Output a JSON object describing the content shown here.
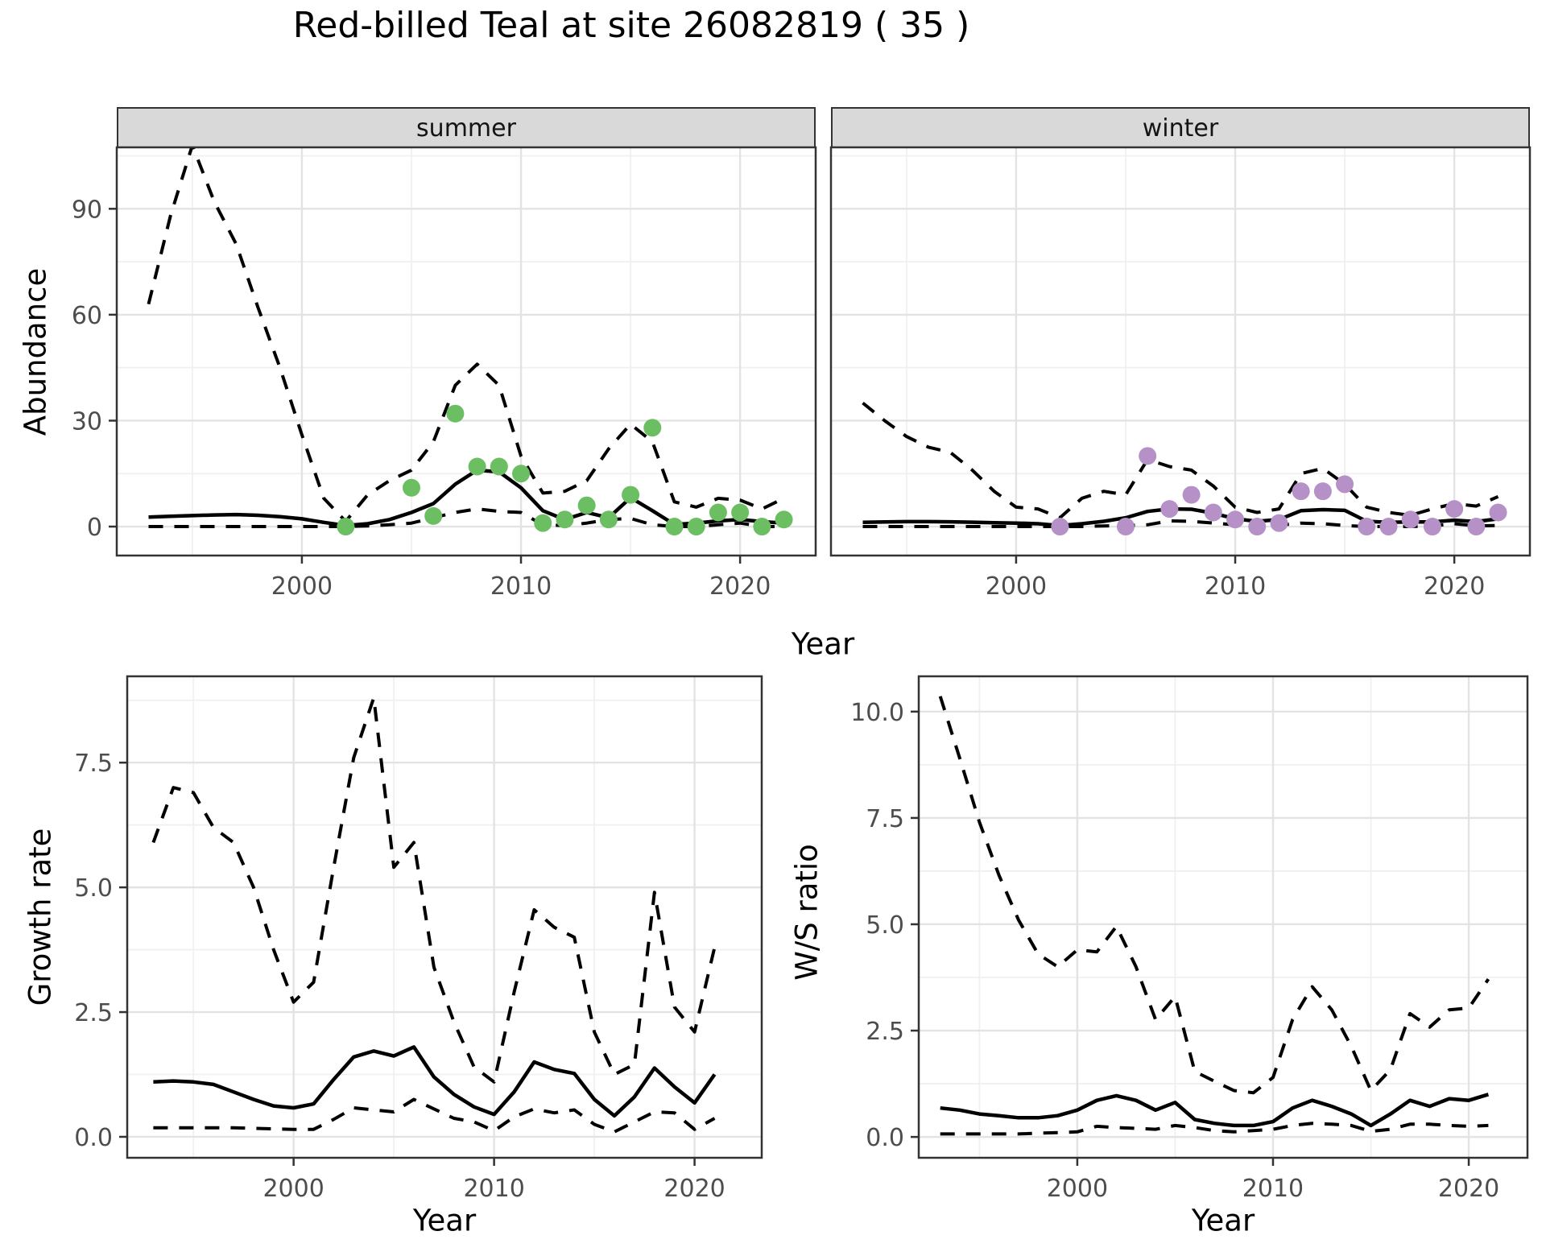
{
  "title": "Red-billed Teal at site 26082819 ( 35 )",
  "facets": [
    "summer",
    "winter"
  ],
  "top_row": {
    "ylabel": "Abundance",
    "xlabel": "Year"
  },
  "bottom_left": {
    "ylabel": "Growth rate",
    "xlabel": "Year"
  },
  "bottom_right": {
    "ylabel": "W/S ratio",
    "xlabel": "Year"
  },
  "colors": {
    "summer_points": "#6cbe63",
    "winter_points": "#b691c7",
    "line": "#000000",
    "strip_bg": "#d9d9d9",
    "panel_border": "#333333",
    "grid_major": "#e3e3e3",
    "grid_minor": "#f0f0f0",
    "tick_text": "#4d4d4d"
  },
  "chart_data": [
    {
      "type": "line",
      "facet": "summer",
      "title": "Abundance - summer",
      "xlabel": "Year",
      "ylabel": "Abundance",
      "grid": true,
      "legend": "none",
      "xticks": [
        2000,
        2010,
        2020
      ],
      "yticks": [
        0,
        30,
        60,
        90
      ],
      "ytick_labels": [
        "0",
        "30",
        "60",
        "90"
      ],
      "ylim": [
        -8,
        108
      ],
      "line_color": "#000000",
      "point_color": "#6cbe63",
      "x": [
        1993,
        1994,
        1995,
        1996,
        1997,
        1998,
        1999,
        2000,
        2001,
        2002,
        2003,
        2004,
        2005,
        2006,
        2007,
        2008,
        2009,
        2010,
        2011,
        2012,
        2013,
        2014,
        2015,
        2016,
        2017,
        2018,
        2019,
        2020,
        2021,
        2022
      ],
      "series": [
        {
          "name": "mean",
          "style": "solid",
          "values": [
            2.7,
            2.9,
            3.1,
            3.3,
            3.4,
            3.2,
            2.8,
            2.2,
            1.2,
            0.3,
            0.8,
            2.0,
            4.0,
            6.5,
            12,
            16,
            15.5,
            11,
            4.5,
            2.0,
            4.0,
            2.5,
            8.2,
            4.5,
            0.6,
            1.0,
            1.6,
            2.0,
            1.4,
            1.0
          ]
        },
        {
          "name": "upper_ci",
          "style": "dashed",
          "values": [
            63,
            88,
            108,
            92,
            80,
            62,
            45,
            26,
            8,
            1.5,
            9,
            13,
            16,
            24,
            40,
            46,
            40,
            20,
            9.5,
            10,
            13,
            22,
            29,
            24,
            7,
            5.5,
            8,
            7.5,
            5,
            8
          ]
        },
        {
          "name": "lower_ci",
          "style": "dashed",
          "values": [
            0,
            0,
            0,
            0,
            0,
            0,
            0,
            0,
            0,
            0,
            0.2,
            0.5,
            1,
            2.5,
            4,
            5,
            4.3,
            4,
            0.5,
            0.3,
            1,
            2,
            2.3,
            0.5,
            0,
            0,
            0.5,
            1,
            0,
            0
          ]
        }
      ],
      "points": {
        "x": [
          2002,
          2005,
          2006,
          2007,
          2008,
          2009,
          2010,
          2011,
          2012,
          2013,
          2014,
          2015,
          2016,
          2017,
          2018,
          2019,
          2020,
          2021,
          2022
        ],
        "y": [
          0,
          11,
          3,
          32,
          17,
          17,
          15,
          1,
          2,
          6,
          2,
          9,
          28,
          0,
          0,
          4,
          4,
          0,
          2
        ]
      }
    },
    {
      "type": "line",
      "facet": "winter",
      "title": "Abundance - winter",
      "xlabel": "Year",
      "ylabel": "Abundance",
      "grid": true,
      "legend": "none",
      "xticks": [
        2000,
        2010,
        2020
      ],
      "yticks": [
        0,
        30,
        60,
        90
      ],
      "ytick_labels": [
        "0",
        "30",
        "60",
        "90"
      ],
      "ylim": [
        -8,
        108
      ],
      "line_color": "#000000",
      "point_color": "#b691c7",
      "x": [
        1993,
        1994,
        1995,
        1996,
        1997,
        1998,
        1999,
        2000,
        2001,
        2002,
        2003,
        2004,
        2005,
        2006,
        2007,
        2008,
        2009,
        2010,
        2011,
        2012,
        2013,
        2014,
        2015,
        2016,
        2017,
        2018,
        2019,
        2020,
        2021,
        2022
      ],
      "series": [
        {
          "name": "mean",
          "style": "solid",
          "values": [
            1.2,
            1.3,
            1.4,
            1.4,
            1.35,
            1.25,
            1.1,
            1.0,
            0.8,
            0.3,
            0.8,
            1.5,
            2.5,
            4.3,
            5.0,
            4.9,
            3.8,
            2.2,
            1.5,
            2.0,
            4.5,
            4.8,
            4.6,
            1.5,
            1.2,
            1.3,
            1.3,
            1.8,
            1.4,
            2.2
          ]
        },
        {
          "name": "upper_ci",
          "style": "dashed",
          "values": [
            35,
            30,
            25.5,
            22.5,
            21,
            16,
            10,
            5.5,
            5,
            2.5,
            8,
            10,
            9,
            19,
            17,
            16,
            11.5,
            5.5,
            4,
            5,
            15,
            16.5,
            12,
            5.5,
            4,
            3.2,
            5,
            6.5,
            5.8,
            8.5
          ]
        },
        {
          "name": "lower_ci",
          "style": "dashed",
          "values": [
            0,
            0,
            0,
            0,
            0,
            0,
            0,
            0,
            0,
            0,
            0,
            0.2,
            0.3,
            0.5,
            1.6,
            1.5,
            1,
            0.5,
            0.2,
            0.4,
            1,
            0.8,
            0.3,
            0,
            0,
            0,
            0.2,
            0.8,
            0.2,
            0.3
          ]
        }
      ],
      "points": {
        "x": [
          2002,
          2005,
          2006,
          2007,
          2008,
          2009,
          2010,
          2011,
          2012,
          2013,
          2014,
          2015,
          2016,
          2017,
          2018,
          2019,
          2020,
          2021,
          2022
        ],
        "y": [
          0,
          0,
          20,
          5,
          9,
          4,
          2,
          0,
          1,
          10,
          10,
          12,
          0,
          0,
          2,
          0,
          5,
          0,
          4
        ]
      }
    },
    {
      "type": "line",
      "facet": null,
      "title": "Growth rate",
      "xlabel": "Year",
      "ylabel": "Growth rate",
      "grid": true,
      "legend": "none",
      "xticks": [
        2000,
        2010,
        2020
      ],
      "yticks": [
        0,
        2.5,
        5,
        7.5
      ],
      "ytick_labels": [
        "0.0",
        "2.5",
        "5.0",
        "7.5"
      ],
      "ylim": [
        -0.4,
        9.2
      ],
      "line_color": "#000000",
      "point_color": null,
      "x": [
        1993,
        1994,
        1995,
        1996,
        1997,
        1998,
        1999,
        2000,
        2001,
        2002,
        2003,
        2004,
        2005,
        2006,
        2007,
        2008,
        2009,
        2010,
        2011,
        2012,
        2013,
        2014,
        2015,
        2016,
        2017,
        2018,
        2019,
        2020,
        2021
      ],
      "series": [
        {
          "name": "mean",
          "style": "solid",
          "values": [
            1.1,
            1.12,
            1.1,
            1.05,
            0.9,
            0.75,
            0.62,
            0.58,
            0.66,
            1.15,
            1.6,
            1.72,
            1.62,
            1.8,
            1.2,
            0.85,
            0.6,
            0.45,
            0.9,
            1.5,
            1.35,
            1.27,
            0.75,
            0.42,
            0.8,
            1.38,
            1.0,
            0.68,
            1.25
          ]
        },
        {
          "name": "upper_ci",
          "style": "dashed",
          "values": [
            5.9,
            7.0,
            6.9,
            6.2,
            5.9,
            5.0,
            3.75,
            2.7,
            3.1,
            5.4,
            7.6,
            8.8,
            5.4,
            5.9,
            3.4,
            2.3,
            1.4,
            1.1,
            2.9,
            4.55,
            4.2,
            4.0,
            2.1,
            1.25,
            1.45,
            4.9,
            2.6,
            2.1,
            3.8
          ]
        },
        {
          "name": "lower_ci",
          "style": "dashed",
          "values": [
            0.18,
            0.18,
            0.18,
            0.18,
            0.18,
            0.17,
            0.16,
            0.15,
            0.15,
            0.35,
            0.58,
            0.54,
            0.5,
            0.75,
            0.56,
            0.37,
            0.3,
            0.12,
            0.4,
            0.56,
            0.48,
            0.54,
            0.25,
            0.1,
            0.3,
            0.5,
            0.48,
            0.15,
            0.37
          ]
        }
      ],
      "points": null
    },
    {
      "type": "line",
      "facet": null,
      "title": "W/S ratio",
      "xlabel": "Year",
      "ylabel": "W/S ratio",
      "grid": true,
      "legend": "none",
      "xticks": [
        2000,
        2010,
        2020
      ],
      "yticks": [
        0,
        2.5,
        5,
        7.5,
        10
      ],
      "ytick_labels": [
        "0.0",
        "2.5",
        "5.0",
        "7.5",
        "10.0"
      ],
      "ylim": [
        -0.5,
        10.8
      ],
      "line_color": "#000000",
      "point_color": null,
      "x": [
        1993,
        1994,
        1995,
        1996,
        1997,
        1998,
        1999,
        2000,
        2001,
        2002,
        2003,
        2004,
        2005,
        2006,
        2007,
        2008,
        2009,
        2010,
        2011,
        2012,
        2013,
        2014,
        2015,
        2016,
        2017,
        2018,
        2019,
        2020,
        2021
      ],
      "series": [
        {
          "name": "mean",
          "style": "solid",
          "values": [
            0.68,
            0.63,
            0.54,
            0.5,
            0.45,
            0.45,
            0.5,
            0.63,
            0.86,
            0.97,
            0.86,
            0.63,
            0.81,
            0.41,
            0.32,
            0.27,
            0.27,
            0.36,
            0.68,
            0.86,
            0.72,
            0.54,
            0.27,
            0.54,
            0.86,
            0.72,
            0.9,
            0.86,
            1.0
          ]
        },
        {
          "name": "upper_ci",
          "style": "dashed",
          "values": [
            10.36,
            8.9,
            7.4,
            6.15,
            5.1,
            4.3,
            4.0,
            4.4,
            4.35,
            4.95,
            4.0,
            2.76,
            3.3,
            1.54,
            1.31,
            1.09,
            1.04,
            1.4,
            2.76,
            3.53,
            2.99,
            2.13,
            1.09,
            1.58,
            2.9,
            2.58,
            2.99,
            3.03,
            3.71
          ]
        },
        {
          "name": "lower_ci",
          "style": "dashed",
          "values": [
            0.07,
            0.07,
            0.07,
            0.07,
            0.07,
            0.09,
            0.1,
            0.12,
            0.25,
            0.22,
            0.2,
            0.18,
            0.27,
            0.22,
            0.15,
            0.12,
            0.15,
            0.18,
            0.27,
            0.32,
            0.3,
            0.27,
            0.13,
            0.18,
            0.3,
            0.3,
            0.27,
            0.25,
            0.27
          ]
        }
      ],
      "points": null
    }
  ]
}
